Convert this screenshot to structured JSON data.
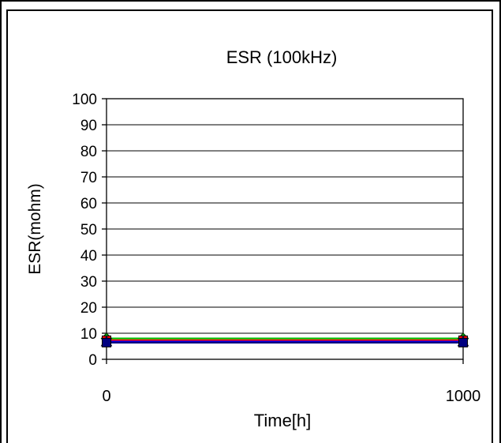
{
  "chart_data": {
    "type": "line",
    "title": "ESR (100kHz)",
    "xlabel": "Time[h]",
    "ylabel": "ESR(mohm)",
    "categories": [
      "0",
      "1000"
    ],
    "x": [
      0,
      1000
    ],
    "ylim": [
      0,
      100
    ],
    "yticks": [
      0,
      10,
      20,
      30,
      40,
      50,
      60,
      70,
      80,
      90,
      100
    ],
    "grid": true,
    "legend": "none",
    "series": [
      {
        "values": [
          8.0,
          8.0
        ],
        "color": "#00c000",
        "marker": "diamond"
      },
      {
        "values": [
          7.3,
          7.3
        ],
        "color": "#ff0000",
        "marker": "square"
      },
      {
        "values": [
          6.8,
          6.8
        ],
        "color": "#0000ff",
        "marker": "triangle"
      },
      {
        "values": [
          6.4,
          6.4
        ],
        "color": "#000080",
        "marker": "square"
      }
    ]
  }
}
